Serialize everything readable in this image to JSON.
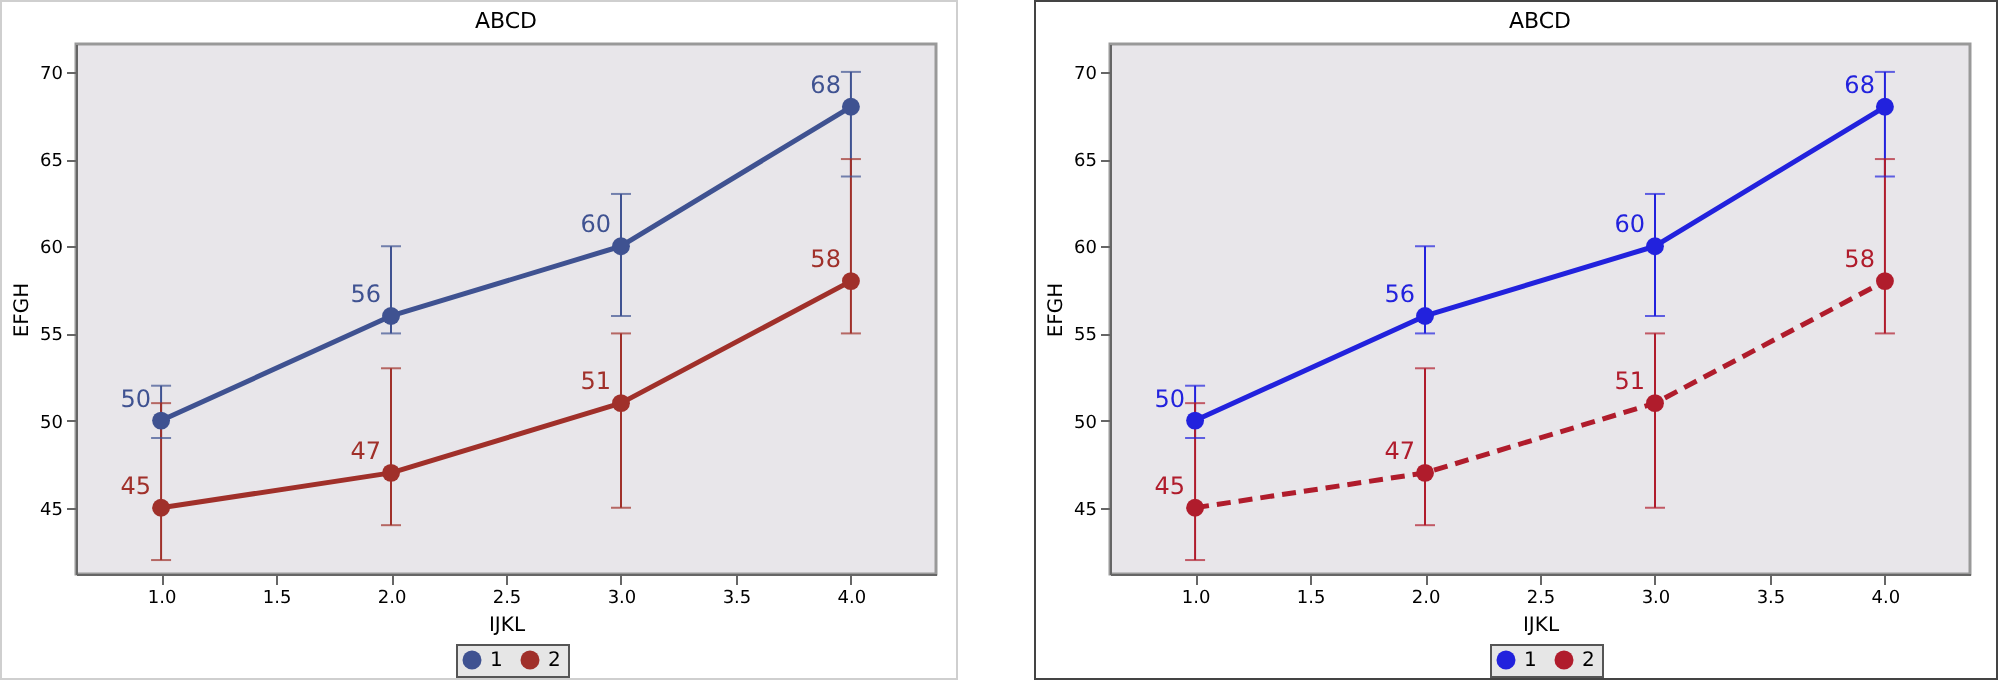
{
  "chart_data": [
    {
      "type": "line",
      "title": "ABCD",
      "xlabel": "IJKL",
      "ylabel": "EFGH",
      "x": [
        1,
        2,
        3,
        4
      ],
      "xlim": [
        0.63,
        4.37
      ],
      "ylim": [
        41.2,
        71.6
      ],
      "xticks": [
        {
          "value": 1,
          "label": "1.0"
        },
        {
          "value": 1.5,
          "label": "1.5"
        },
        {
          "value": 2,
          "label": "2.0"
        },
        {
          "value": 2.5,
          "label": "2.5"
        },
        {
          "value": 3,
          "label": "3.0"
        },
        {
          "value": 3.5,
          "label": "3.5"
        },
        {
          "value": 4,
          "label": "4.0"
        }
      ],
      "yticks": [
        45,
        50,
        55,
        60,
        65,
        70
      ],
      "data_labels": true,
      "legend": "bottom",
      "marker": "circle",
      "line_style": "solid",
      "series": [
        {
          "name": "1",
          "color": "#3f5291",
          "values": [
            50,
            56,
            60,
            68
          ],
          "errors": [
            [
              49,
              52
            ],
            [
              55,
              60
            ],
            [
              56,
              63
            ],
            [
              64,
              70
            ]
          ]
        },
        {
          "name": "2",
          "color": "#a0302a",
          "values": [
            45,
            47,
            51,
            58
          ],
          "errors": [
            [
              42,
              51
            ],
            [
              44,
              53
            ],
            [
              45,
              55
            ],
            [
              55,
              65
            ]
          ]
        }
      ]
    },
    {
      "type": "line",
      "title": "ABCD",
      "xlabel": "IJKL",
      "ylabel": "EFGH",
      "x": [
        1,
        2,
        3,
        4
      ],
      "xlim": [
        0.63,
        4.37
      ],
      "ylim": [
        41.2,
        71.6
      ],
      "xticks": [
        {
          "value": 1,
          "label": "1.0"
        },
        {
          "value": 1.5,
          "label": "1.5"
        },
        {
          "value": 2,
          "label": "2.0"
        },
        {
          "value": 2.5,
          "label": "2.5"
        },
        {
          "value": 3,
          "label": "3.0"
        },
        {
          "value": 3.5,
          "label": "3.5"
        },
        {
          "value": 4,
          "label": "4.0"
        }
      ],
      "yticks": [
        45,
        50,
        55,
        60,
        65,
        70
      ],
      "data_labels": true,
      "legend": "bottom",
      "marker": "circle",
      "series": [
        {
          "name": "1",
          "color": "#2222dd",
          "values": [
            50,
            56,
            60,
            68
          ],
          "errors": [
            [
              49,
              52
            ],
            [
              55,
              60
            ],
            [
              56,
              63
            ],
            [
              64,
              70
            ]
          ],
          "line_style": "solid"
        },
        {
          "name": "2",
          "color": "#b01c2c",
          "values": [
            45,
            47,
            51,
            58
          ],
          "errors": [
            [
              42,
              51
            ],
            [
              44,
              53
            ],
            [
              45,
              55
            ],
            [
              55,
              65
            ]
          ],
          "line_style": "dashed"
        }
      ]
    }
  ]
}
